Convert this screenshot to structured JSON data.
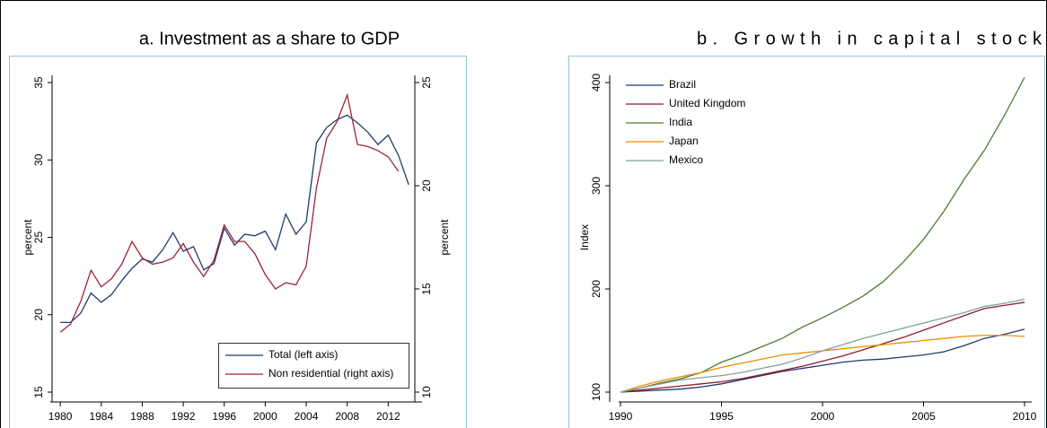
{
  "chart_data": [
    {
      "type": "line",
      "title": "a. Investment as a share to GDP",
      "ylabel": "percent",
      "y2label": "percent",
      "x": [
        1980,
        1981,
        1982,
        1983,
        1984,
        1985,
        1986,
        1987,
        1988,
        1989,
        1990,
        1991,
        1992,
        1993,
        1994,
        1995,
        1996,
        1997,
        1998,
        1999,
        2000,
        2001,
        2002,
        2003,
        2004,
        2005,
        2006,
        2007,
        2008,
        2009,
        2010,
        2011,
        2012,
        2013,
        2014
      ],
      "xlim": [
        1979.2,
        2014.6
      ],
      "xticks": [
        1980,
        1984,
        1988,
        1992,
        1996,
        2000,
        2004,
        2008,
        2012
      ],
      "ylim": [
        15,
        35
      ],
      "yticks": [
        15,
        20,
        25,
        30,
        35
      ],
      "y2lim": [
        10,
        25
      ],
      "y2ticks": [
        10,
        15,
        20,
        25
      ],
      "legend": "lower right",
      "series": [
        {
          "name": "Total (left axis)",
          "color": "#1f3b6e",
          "values": [
            19.5,
            19.5,
            20.1,
            21.4,
            20.8,
            21.3,
            22.2,
            23.0,
            23.6,
            23.4,
            24.2,
            25.3,
            24.1,
            24.4,
            22.9,
            23.3,
            25.6,
            24.5,
            25.2,
            25.1,
            25.4,
            24.2,
            26.5,
            25.2,
            26.0,
            31.1,
            32.1,
            32.6,
            32.9,
            32.4,
            31.8,
            31.0,
            31.6,
            30.3,
            28.4
          ]
        },
        {
          "name": "Non residential (right axis)",
          "color": "#9b2335",
          "axis": "y2",
          "values": [
            12.9,
            13.3,
            14.4,
            15.9,
            15.1,
            15.5,
            16.2,
            17.3,
            16.5,
            16.2,
            16.3,
            16.5,
            17.2,
            16.3,
            15.6,
            16.4,
            18.1,
            17.3,
            17.3,
            16.7,
            15.7,
            15.0,
            15.3,
            15.2,
            16.1,
            19.9,
            22.3,
            23.1,
            24.4,
            22.0,
            21.9,
            21.7,
            21.4,
            20.7,
            null
          ]
        }
      ]
    },
    {
      "type": "line",
      "title": "b. Growth in capital stock",
      "ylabel": "Index",
      "x": [
        1990,
        1991,
        1992,
        1993,
        1994,
        1995,
        1996,
        1997,
        1998,
        1999,
        2000,
        2001,
        2002,
        2003,
        2004,
        2005,
        2006,
        2007,
        2008,
        2009,
        2010
      ],
      "xlim": [
        1990,
        2010
      ],
      "xticks": [
        1990,
        1995,
        2000,
        2005,
        2010
      ],
      "ylim": [
        100,
        400
      ],
      "yticks": [
        100,
        200,
        300,
        400
      ],
      "legend": "upper left",
      "series": [
        {
          "name": "Brazil",
          "color": "#1f3b6e",
          "values": [
            100,
            101,
            102,
            103,
            105,
            108,
            112,
            116,
            120,
            123,
            126,
            129,
            131,
            132,
            134,
            136,
            139,
            145,
            152,
            156,
            161
          ]
        },
        {
          "name": "United Kingdom",
          "color": "#8b1c2c",
          "values": [
            100,
            102,
            104,
            106,
            108,
            110,
            113,
            117,
            121,
            125,
            130,
            135,
            141,
            147,
            153,
            160,
            167,
            174,
            181,
            184,
            187
          ]
        },
        {
          "name": "India",
          "color": "#4d7c2b",
          "values": [
            100,
            104,
            109,
            113,
            119,
            129,
            136,
            144,
            152,
            163,
            172,
            182,
            193,
            207,
            226,
            248,
            275,
            306,
            334,
            368,
            405
          ]
        },
        {
          "name": "Japan",
          "color": "#f08c00",
          "values": [
            100,
            106,
            111,
            115,
            119,
            124,
            128,
            132,
            136,
            138,
            140,
            142,
            144,
            146,
            148,
            150,
            152,
            154,
            155,
            155,
            154
          ]
        },
        {
          "name": "Mexico",
          "color": "#7fa19a",
          "values": [
            100,
            104,
            108,
            112,
            114,
            116,
            119,
            123,
            127,
            133,
            140,
            146,
            152,
            157,
            162,
            167,
            172,
            177,
            183,
            186,
            190
          ]
        }
      ]
    }
  ]
}
